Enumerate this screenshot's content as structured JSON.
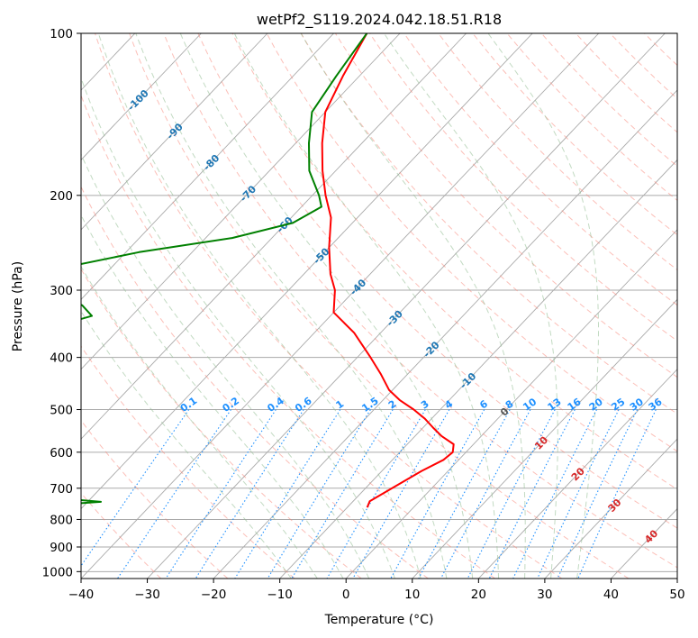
{
  "chart_data": {
    "type": "line",
    "title": "wetPf2_S119.2024.042.18.51.R18",
    "xlabel": "Temperature (°C)",
    "ylabel": "Pressure (hPa)",
    "xlim": [
      -40,
      50
    ],
    "ylim": [
      1030,
      100
    ],
    "y_scale": "log",
    "x_ticks": [
      "−40",
      "−30",
      "−20",
      "−10",
      "0",
      "10",
      "20",
      "30",
      "40",
      "50"
    ],
    "x_tick_values": [
      -40,
      -30,
      -20,
      -10,
      0,
      10,
      20,
      30,
      40,
      50
    ],
    "y_ticks": [
      "100",
      "200",
      "300",
      "400",
      "500",
      "600",
      "700",
      "800",
      "900",
      "1000"
    ],
    "y_tick_values": [
      100,
      200,
      300,
      400,
      500,
      600,
      700,
      800,
      900,
      1000
    ],
    "grid": true,
    "skew": true,
    "colors": {
      "temperature": "#ff0000",
      "dewpoint": "#008000",
      "dry_adiabat": "#fa8072",
      "moist_adiabat": "#8fbc8f",
      "mixing_ratio": "#1e90ff",
      "isotherm_label": "#1f77b4",
      "ice_label": "#d62728",
      "grid": "#aaaaaa"
    },
    "isotherm_labels": [
      "-100",
      "-90",
      "-80",
      "-70",
      "-60",
      "-50",
      "-40",
      "-30",
      "-20",
      "-10",
      "0",
      "10",
      "20",
      "30",
      "40"
    ],
    "isotherm_label_values": [
      -100,
      -90,
      -80,
      -70,
      -60,
      -50,
      -40,
      -30,
      -20,
      -10,
      0,
      10,
      20,
      30,
      40
    ],
    "mixing_ratio_labels": [
      "0.1",
      "0.2",
      "0.4",
      "0.6",
      "1",
      "1.5",
      "2",
      "3",
      "4",
      "6",
      "8",
      "10",
      "13",
      "16",
      "20",
      "25",
      "30",
      "36"
    ],
    "mixing_ratio_values": [
      0.1,
      0.2,
      0.4,
      0.6,
      1,
      1.5,
      2,
      3,
      4,
      6,
      8,
      10,
      13,
      16,
      20,
      25,
      30,
      36
    ],
    "series": [
      {
        "points": [
          [
            100,
            -75
          ],
          [
            120,
            -72.5
          ],
          [
            140,
            -70
          ],
          [
            160,
            -66
          ],
          [
            180,
            -62
          ],
          [
            200,
            -58
          ],
          [
            220,
            -54
          ],
          [
            250,
            -50
          ],
          [
            280,
            -46
          ],
          [
            300,
            -43
          ],
          [
            330,
            -40
          ],
          [
            360,
            -34
          ],
          [
            400,
            -28
          ],
          [
            430,
            -24
          ],
          [
            460,
            -20.5
          ],
          [
            480,
            -17.5
          ],
          [
            500,
            -14
          ],
          [
            520,
            -11
          ],
          [
            540,
            -8.5
          ],
          [
            560,
            -6
          ],
          [
            580,
            -3
          ],
          [
            600,
            -2
          ],
          [
            620,
            -2.3
          ],
          [
            650,
            -4
          ],
          [
            700,
            -6
          ],
          [
            740,
            -7.5
          ],
          [
            760,
            -7
          ]
        ]
      },
      {
        "points": [
          [
            100,
            -75
          ],
          [
            120,
            -73.5
          ],
          [
            140,
            -72
          ],
          [
            160,
            -68
          ],
          [
            180,
            -64
          ],
          [
            200,
            -59
          ],
          [
            210,
            -57
          ],
          [
            225,
            -59
          ],
          [
            240,
            -66
          ],
          [
            255,
            -78
          ],
          [
            270,
            -86
          ],
          [
            285,
            -90
          ],
          [
            295,
            -91.5
          ],
          [
            305,
            -86
          ],
          [
            320,
            -79
          ],
          [
            335,
            -76
          ],
          [
            350,
            -80
          ],
          [
            360,
            -88
          ],
          [
            375,
            -96
          ],
          [
            390,
            -101
          ],
          [
            400,
            -100
          ],
          [
            410,
            -102
          ],
          [
            420,
            -100
          ],
          [
            430,
            -100
          ],
          [
            440,
            -104
          ],
          [
            455,
            -105
          ],
          [
            465,
            -99
          ],
          [
            475,
            -95
          ],
          [
            490,
            -90
          ],
          [
            500,
            -89.5
          ],
          [
            510,
            -91
          ],
          [
            520,
            -91.5
          ],
          [
            530,
            -91
          ],
          [
            540,
            -89
          ],
          [
            555,
            -94
          ],
          [
            565,
            -117
          ],
          [
            575,
            -130
          ],
          [
            600,
            -135
          ],
          [
            610,
            -130
          ],
          [
            630,
            -125
          ],
          [
            650,
            -95
          ],
          [
            670,
            -91
          ],
          [
            690,
            -88
          ],
          [
            700,
            -92
          ],
          [
            710,
            -89
          ],
          [
            725,
            -62
          ],
          [
            735,
            -52
          ],
          [
            742,
            -48
          ],
          [
            748,
            -52
          ],
          [
            755,
            -56
          ]
        ]
      }
    ]
  }
}
